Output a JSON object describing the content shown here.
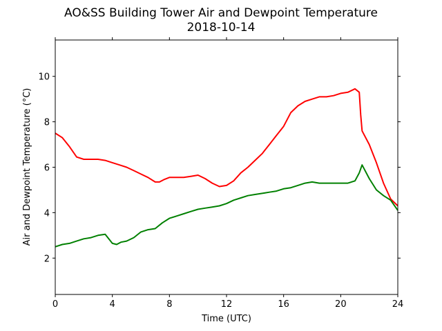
{
  "chart_data": {
    "type": "line",
    "title": "AO&SS Building Tower Air and Dewpoint Temperature",
    "subtitle": "2018-10-14",
    "xlabel": "Time (UTC)",
    "ylabel": "Air and Dewpoint Temperature (°C)",
    "xlim": [
      0,
      24
    ],
    "ylim": [
      0.4,
      11.6
    ],
    "xticks": [
      0,
      4,
      8,
      12,
      16,
      20,
      24
    ],
    "yticks": [
      2,
      4,
      6,
      8,
      10
    ],
    "grid": false,
    "legend": "none",
    "series": [
      {
        "color": "#ff0000",
        "x": [
          0,
          0.5,
          1,
          1.5,
          2,
          2.5,
          3,
          3.5,
          4,
          4.5,
          5,
          5.5,
          6,
          6.5,
          7,
          7.3,
          7.6,
          8,
          8.5,
          9,
          9.5,
          10,
          10.5,
          11,
          11.5,
          12,
          12.5,
          13,
          13.5,
          14,
          14.5,
          15,
          15.5,
          16,
          16.5,
          17,
          17.5,
          18,
          18.5,
          19,
          19.5,
          20,
          20.5,
          21,
          21.3,
          21.4,
          21.5,
          22,
          22.5,
          23,
          23.5,
          24
        ],
        "y": [
          7.5,
          7.3,
          6.9,
          6.45,
          6.35,
          6.35,
          6.35,
          6.3,
          6.2,
          6.1,
          6.0,
          5.85,
          5.7,
          5.55,
          5.35,
          5.35,
          5.45,
          5.55,
          5.55,
          5.55,
          5.6,
          5.65,
          5.5,
          5.3,
          5.15,
          5.2,
          5.4,
          5.75,
          6.0,
          6.3,
          6.6,
          7.0,
          7.4,
          7.8,
          8.4,
          8.7,
          8.9,
          9.0,
          9.1,
          9.1,
          9.15,
          9.25,
          9.3,
          9.45,
          9.3,
          8.3,
          7.6,
          7.0,
          6.2,
          5.3,
          4.6,
          4.3
        ]
      },
      {
        "color": "#008000",
        "x": [
          0,
          0.5,
          1,
          1.5,
          2,
          2.5,
          3,
          3.5,
          4,
          4.3,
          4.6,
          5,
          5.5,
          6,
          6.5,
          7,
          7.5,
          8,
          8.5,
          9,
          9.5,
          10,
          10.5,
          11,
          11.5,
          12,
          12.5,
          13,
          13.5,
          14,
          14.5,
          15,
          15.5,
          16,
          16.5,
          17,
          17.5,
          18,
          18.5,
          19,
          19.5,
          20,
          20.5,
          21,
          21.3,
          21.5,
          22,
          22.5,
          23,
          23.5,
          24
        ],
        "y": [
          2.5,
          2.6,
          2.65,
          2.75,
          2.85,
          2.9,
          3.0,
          3.05,
          2.65,
          2.6,
          2.7,
          2.75,
          2.9,
          3.15,
          3.25,
          3.3,
          3.55,
          3.75,
          3.85,
          3.95,
          4.05,
          4.15,
          4.2,
          4.25,
          4.3,
          4.4,
          4.55,
          4.65,
          4.75,
          4.8,
          4.85,
          4.9,
          4.95,
          5.05,
          5.1,
          5.2,
          5.3,
          5.35,
          5.3,
          5.3,
          5.3,
          5.3,
          5.3,
          5.4,
          5.75,
          6.1,
          5.5,
          5.0,
          4.75,
          4.55,
          4.1
        ]
      }
    ]
  }
}
